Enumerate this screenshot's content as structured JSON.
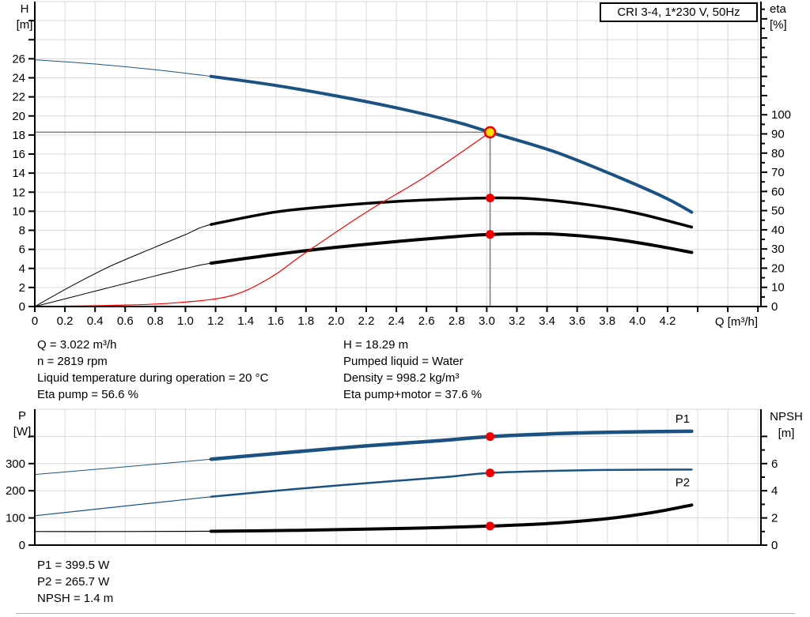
{
  "title_box": "CRI 3-4, 1*230 V, 50Hz",
  "colors": {
    "curve_blue": "#1b5282",
    "curve_black": "#000000",
    "curve_red": "#ff0000",
    "grid": "#d9d9d9",
    "axis": "#000000",
    "crosshair": "#7f7f7f",
    "dot_red": "#ee0000",
    "duty_fill": "#ffe100"
  },
  "info_top_left": [
    "Q = 3.022 m³/h",
    "n = 2819 rpm",
    "Liquid temperature during operation = 20 °C",
    "Eta pump = 56.6 %"
  ],
  "info_top_right": [
    "H = 18.29 m",
    "Pumped liquid = Water",
    "Density = 998.2 kg/m³",
    "Eta pump+motor = 37.6 %"
  ],
  "info_bottom": [
    "P1 = 399.5 W",
    "P2 = 265.7 W",
    "NPSH = 1.4 m"
  ],
  "chart_data": [
    {
      "type": "line",
      "title": "CRI 3-4, 1*230 V, 50Hz",
      "x_axis": {
        "label": "Q [m³/h]",
        "min": 0,
        "max": 4.82,
        "tick_step": 0.2,
        "tick_labels": [
          "0",
          "0.2",
          "0.4",
          "0.6",
          "0.8",
          "1.0",
          "1.2",
          "1.4",
          "1.6",
          "1.8",
          "2.0",
          "2.2",
          "2.4",
          "2.6",
          "2.8",
          "3.0",
          "3.2",
          "3.4",
          "3.6",
          "3.8",
          "4.0",
          "4.2"
        ]
      },
      "y_left": {
        "label_lines": [
          "H",
          "[m]"
        ],
        "min": 0,
        "max": 32,
        "tick_step": 2,
        "tick_labels": [
          "0",
          "2",
          "4",
          "6",
          "8",
          "10",
          "12",
          "14",
          "16",
          "18",
          "20",
          "22",
          "24",
          "26"
        ]
      },
      "y_right": {
        "label_lines": [
          "eta",
          "[%]"
        ],
        "min": 0,
        "max": 159,
        "major_step": 10,
        "minor_step": 5,
        "tick_max": 155,
        "tick_labels": [
          "0",
          "10",
          "20",
          "30",
          "40",
          "50",
          "60",
          "70",
          "80",
          "90",
          "100"
        ]
      },
      "crosshair": {
        "q": 3.022,
        "value": 18.29,
        "axis": "left"
      },
      "series": [
        {
          "name": "head-curve",
          "axis": "left",
          "color": "blue",
          "thin": 1,
          "thick": 4,
          "thick_from": 1.17,
          "points": [
            [
              0,
              25.9
            ],
            [
              0.4,
              25.45
            ],
            [
              0.8,
              24.85
            ],
            [
              1.17,
              24.15
            ],
            [
              1.6,
              23.2
            ],
            [
              2.0,
              22.1
            ],
            [
              2.4,
              20.85
            ],
            [
              2.8,
              19.35
            ],
            [
              3.022,
              18.29
            ],
            [
              3.44,
              16.3
            ],
            [
              3.84,
              13.8
            ],
            [
              4.18,
              11.45
            ],
            [
              4.36,
              9.9
            ]
          ]
        },
        {
          "name": "eta-pump-curve",
          "axis": "right",
          "color": "black",
          "thin": 1,
          "thick": 3.5,
          "thick_from": 1.17,
          "points": [
            [
              0,
              0
            ],
            [
              0.25,
              11
            ],
            [
              0.5,
              21
            ],
            [
              0.8,
              31
            ],
            [
              1.0,
              37.5
            ],
            [
              1.17,
              42.8
            ],
            [
              1.6,
              49.3
            ],
            [
              2.0,
              52.5
            ],
            [
              2.4,
              54.8
            ],
            [
              2.8,
              56.2
            ],
            [
              3.022,
              56.6
            ],
            [
              3.3,
              56.2
            ],
            [
              3.7,
              52.8
            ],
            [
              4.0,
              48.6
            ],
            [
              4.36,
              41.4
            ]
          ]
        },
        {
          "name": "eta-pump-motor-curve",
          "axis": "right",
          "color": "black",
          "thin": 1,
          "thick": 4,
          "thick_from": 1.17,
          "points": [
            [
              0,
              0
            ],
            [
              0.25,
              5
            ],
            [
              0.5,
              10
            ],
            [
              0.8,
              16
            ],
            [
              1.0,
              19.8
            ],
            [
              1.17,
              22.6
            ],
            [
              1.6,
              27.2
            ],
            [
              2.0,
              30.9
            ],
            [
              2.4,
              33.9
            ],
            [
              2.8,
              36.5
            ],
            [
              3.022,
              37.6
            ],
            [
              3.4,
              37.9
            ],
            [
              3.8,
              35.5
            ],
            [
              4.1,
              32
            ],
            [
              4.36,
              28.2
            ]
          ]
        },
        {
          "name": "duty-eta-curve",
          "axis": "left",
          "color": "red",
          "thin": 1.2,
          "points": [
            [
              0,
              0
            ],
            [
              0.5,
              0.12
            ],
            [
              0.9,
              0.35
            ],
            [
              1.29,
              1.08
            ],
            [
              1.55,
              2.9
            ],
            [
              1.79,
              5.56
            ],
            [
              2.2,
              9.9
            ],
            [
              2.6,
              13.7
            ],
            [
              3.022,
              18.29
            ]
          ]
        }
      ],
      "markers": [
        {
          "q": 3.022,
          "value": 18.29,
          "axis": "left",
          "style": "duty",
          "name": "duty-point"
        },
        {
          "q": 3.022,
          "value": 56.6,
          "axis": "right",
          "style": "dot",
          "name": "eta-pump-point"
        },
        {
          "q": 3.022,
          "value": 37.6,
          "axis": "right",
          "style": "dot",
          "name": "eta-pump-motor-point"
        }
      ]
    },
    {
      "type": "line",
      "x_axis": {
        "label": "",
        "min": 0,
        "max": 4.82,
        "tick_step": 0.2,
        "tick_labels": []
      },
      "y_left": {
        "label_lines": [
          "P",
          "[W]"
        ],
        "min": 0,
        "max": 500,
        "tick_step": 100,
        "tick_labels": [
          "0",
          "100",
          "200",
          "300"
        ]
      },
      "y_right": {
        "label_lines": [
          "NPSH",
          "[m]"
        ],
        "min": 0,
        "max": 10,
        "major_step": 2,
        "minor_step": 1,
        "tick_max": 8,
        "tick_labels": [
          "0",
          "2",
          "4",
          "6"
        ]
      },
      "series": [
        {
          "name": "p1-curve",
          "label": "P1",
          "axis": "left",
          "color": "blue",
          "thin": 1,
          "thick": 4.5,
          "thick_from": 1.17,
          "points": [
            [
              0,
              260
            ],
            [
              0.6,
              288
            ],
            [
              1.17,
              316
            ],
            [
              1.7,
              342
            ],
            [
              2.2,
              365
            ],
            [
              2.7,
              385
            ],
            [
              3.022,
              399.5
            ],
            [
              3.5,
              411
            ],
            [
              3.9,
              416
            ],
            [
              4.36,
              419
            ]
          ]
        },
        {
          "name": "p2-curve",
          "label": "P2",
          "axis": "left",
          "color": "blue",
          "thin": 1.2,
          "thick": 2.5,
          "thick_from": 1.17,
          "points": [
            [
              0,
              108
            ],
            [
              0.6,
              144
            ],
            [
              1.17,
              178
            ],
            [
              1.7,
              205
            ],
            [
              2.2,
              228
            ],
            [
              2.7,
              249
            ],
            [
              3.022,
              265.7
            ],
            [
              3.5,
              274
            ],
            [
              3.9,
              277
            ],
            [
              4.36,
              278
            ]
          ]
        },
        {
          "name": "npsh-curve",
          "axis": "right",
          "color": "black",
          "thin": 1.2,
          "thick": 4,
          "thick_from": 1.17,
          "points": [
            [
              0,
              1.0
            ],
            [
              0.6,
              1.0
            ],
            [
              1.17,
              1.02
            ],
            [
              1.7,
              1.08
            ],
            [
              2.2,
              1.18
            ],
            [
              2.6,
              1.27
            ],
            [
              3.022,
              1.4
            ],
            [
              3.4,
              1.58
            ],
            [
              3.8,
              1.95
            ],
            [
              4.1,
              2.4
            ],
            [
              4.36,
              2.95
            ]
          ]
        }
      ],
      "markers": [
        {
          "q": 3.022,
          "value": 399.5,
          "axis": "left",
          "style": "dot",
          "name": "p1-point"
        },
        {
          "q": 3.022,
          "value": 265.7,
          "axis": "left",
          "style": "dot",
          "name": "p2-point"
        },
        {
          "q": 3.022,
          "value": 1.4,
          "axis": "right",
          "style": "dot",
          "name": "npsh-point"
        }
      ]
    }
  ]
}
